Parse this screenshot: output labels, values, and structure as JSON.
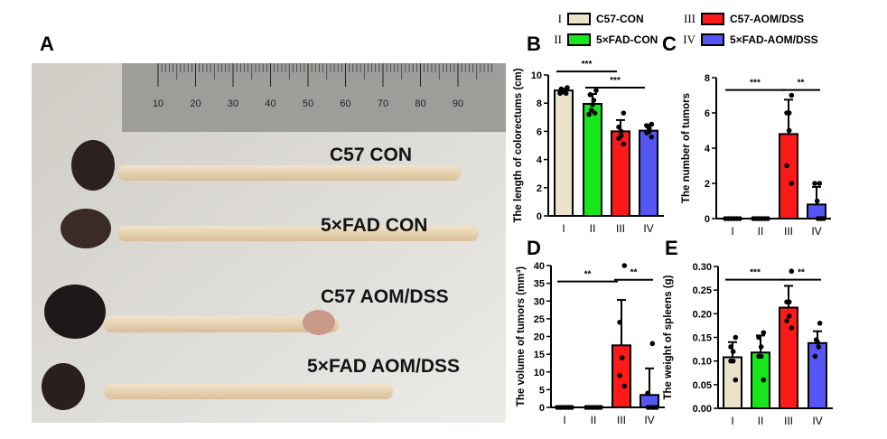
{
  "panels": {
    "A": "A",
    "B": "B",
    "C": "C",
    "D": "D",
    "E": "E"
  },
  "photo": {
    "ruler_ticks": [
      "10",
      "20",
      "30",
      "40",
      "50",
      "60",
      "70",
      "80",
      "90"
    ],
    "colon_labels": [
      "C57 CON",
      "5×FAD CON",
      "C57 AOM/DSS",
      "5×FAD AOM/DSS"
    ]
  },
  "legend": [
    {
      "num": "I",
      "label": "C57-CON",
      "color": "#ebe3c9"
    },
    {
      "num": "II",
      "label": "5×FAD-CON",
      "color": "#16e61a"
    },
    {
      "num": "III",
      "label": "C57-AOM/DSS",
      "color": "#ff1a1a"
    },
    {
      "num": "IV",
      "label": "5×FAD-AOM/DSS",
      "color": "#5656f5"
    }
  ],
  "chart_data": [
    {
      "id": "B",
      "type": "bar",
      "ylabel": "The length of colorectums (cm)",
      "categories": [
        "I",
        "II",
        "III",
        "IV"
      ],
      "ylim": [
        0,
        10
      ],
      "yticks": [
        "0",
        "2",
        "4",
        "6",
        "8",
        "10"
      ],
      "ytick_values": [
        0,
        2,
        4,
        6,
        8,
        10
      ],
      "values": [
        8.9,
        7.95,
        6.0,
        6.05
      ],
      "errors": [
        0.12,
        0.7,
        0.8,
        0.4
      ],
      "points": [
        [
          9.1,
          9.0,
          8.9,
          8.9,
          8.8,
          8.7,
          8.7
        ],
        [
          8.9,
          8.6,
          8.2,
          7.9,
          7.5,
          7.3,
          7.2
        ],
        [
          7.3,
          6.3,
          6.0,
          5.7,
          5.5,
          5.1
        ],
        [
          6.5,
          6.4,
          6.2,
          6.0,
          5.9,
          5.6
        ]
      ],
      "significance": [
        {
          "from": 0,
          "to": 2,
          "y": 10.25,
          "label": "***"
        },
        {
          "from": 1,
          "to": 3,
          "y": 9.1,
          "label": "***"
        }
      ]
    },
    {
      "id": "C",
      "type": "bar",
      "ylabel": "The number of tumors",
      "categories": [
        "I",
        "II",
        "III",
        "IV"
      ],
      "ylim": [
        0,
        8
      ],
      "yticks": [
        "0",
        "2",
        "4",
        "6",
        "8"
      ],
      "ytick_values": [
        0,
        2,
        4,
        6,
        8
      ],
      "values": [
        0,
        0,
        4.8,
        0.8
      ],
      "errors": [
        0,
        0,
        1.95,
        1.0
      ],
      "points": [
        [
          0,
          0,
          0,
          0,
          0,
          0
        ],
        [
          0,
          0,
          0,
          0,
          0,
          0
        ],
        [
          7,
          6,
          6,
          5,
          3,
          2
        ],
        [
          2,
          2,
          1,
          0,
          0,
          0
        ]
      ],
      "significance": [
        {
          "from": 0,
          "to": 2,
          "y": 7.3,
          "label": "***"
        },
        {
          "from": 2,
          "to": 3,
          "y": 7.3,
          "label": "**"
        }
      ]
    },
    {
      "id": "D",
      "type": "bar",
      "ylabel": "The volume of tumors (mm³)",
      "categories": [
        "I",
        "II",
        "III",
        "IV"
      ],
      "ylim": [
        0,
        40
      ],
      "yticks": [
        "0",
        "5",
        "10",
        "15",
        "20",
        "25",
        "30",
        "35",
        "40"
      ],
      "ytick_values": [
        0,
        5,
        10,
        15,
        20,
        25,
        30,
        35,
        40
      ],
      "values": [
        0,
        0,
        17.5,
        3.5
      ],
      "errors": [
        0,
        0,
        12.8,
        7.5
      ],
      "points": [
        [
          0,
          0,
          0,
          0,
          0,
          0
        ],
        [
          0,
          0,
          0,
          0,
          0,
          0
        ],
        [
          40,
          24,
          14,
          14,
          9,
          6
        ],
        [
          18,
          4,
          0,
          0,
          0,
          0
        ]
      ],
      "significance": [
        {
          "from": 0,
          "to": 2,
          "y": 35.5,
          "label": "**"
        },
        {
          "from": 2,
          "to": 3,
          "y": 36,
          "label": "**"
        }
      ]
    },
    {
      "id": "E",
      "type": "bar",
      "ylabel": "The weight of spleens (g)",
      "categories": [
        "I",
        "II",
        "III",
        "IV"
      ],
      "ylim": [
        0,
        0.3
      ],
      "yticks": [
        "0.00",
        "0.05",
        "0.10",
        "0.15",
        "0.20",
        "0.25",
        "0.30"
      ],
      "ytick_values": [
        0,
        0.05,
        0.1,
        0.15,
        0.2,
        0.25,
        0.3
      ],
      "values": [
        0.108,
        0.118,
        0.213,
        0.138
      ],
      "errors": [
        0.032,
        0.036,
        0.046,
        0.025
      ],
      "points": [
        [
          0.15,
          0.13,
          0.12,
          0.1,
          0.1,
          0.06
        ],
        [
          0.16,
          0.15,
          0.13,
          0.11,
          0.11,
          0.06
        ],
        [
          0.29,
          0.225,
          0.225,
          0.195,
          0.185,
          0.17
        ],
        [
          0.18,
          0.145,
          0.14,
          0.13,
          0.11
        ]
      ],
      "significance": [
        {
          "from": 0,
          "to": 2,
          "y": 0.272,
          "label": "***"
        },
        {
          "from": 2,
          "to": 3,
          "y": 0.272,
          "label": "**"
        }
      ]
    }
  ]
}
